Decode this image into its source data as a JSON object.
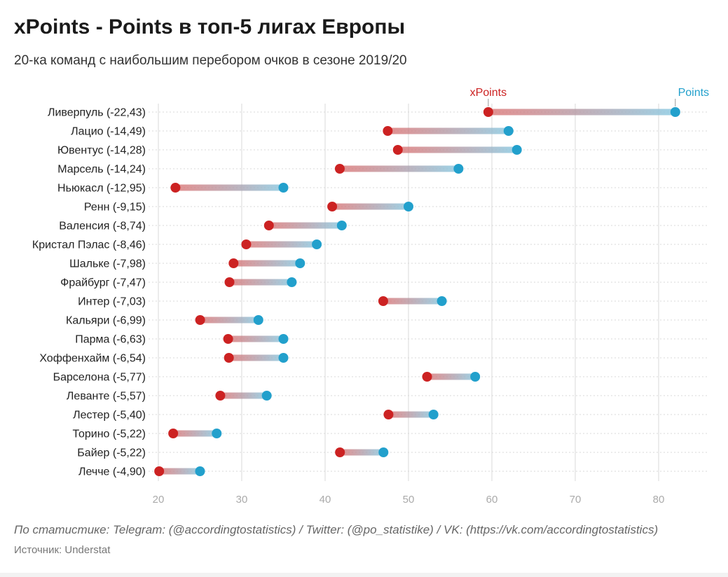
{
  "title": "xPoints - Points в топ-5 лигах Европы",
  "subtitle": "20-ка команд с наибольшим перебором очков в сезоне 2019/20",
  "footer": "По статистике: Telegram: (@accordingtostatistics) / Twitter: (@po_statistike) / VK: (https://vk.com/accordingtostatistics)",
  "source": "Источник: Understat",
  "colors": {
    "xpoints": "#cc2222",
    "points": "#22a0cc",
    "grid": "#d8d8d8",
    "tick": "#aaaaaa"
  },
  "chart_data": {
    "type": "dumbbell",
    "legend": {
      "xpoints_label": "xPoints",
      "points_label": "Points"
    },
    "xlim": [
      18,
      85
    ],
    "xticks": [
      20,
      30,
      40,
      50,
      60,
      70,
      80
    ],
    "teams": [
      {
        "label": "Ливерпуль (-22,43)",
        "xpoints": 59.57,
        "points": 82
      },
      {
        "label": "Лацио (-14,49)",
        "xpoints": 47.51,
        "points": 62
      },
      {
        "label": "Ювентус (-14,28)",
        "xpoints": 48.72,
        "points": 63
      },
      {
        "label": "Марсель (-14,24)",
        "xpoints": 41.76,
        "points": 56
      },
      {
        "label": "Ньюкасл (-12,95)",
        "xpoints": 22.05,
        "points": 35
      },
      {
        "label": "Ренн (-9,15)",
        "xpoints": 40.85,
        "points": 50
      },
      {
        "label": "Валенсия (-8,74)",
        "xpoints": 33.26,
        "points": 42
      },
      {
        "label": "Кристал Пэлас (-8,46)",
        "xpoints": 30.54,
        "points": 39
      },
      {
        "label": "Шальке (-7,98)",
        "xpoints": 29.02,
        "points": 37
      },
      {
        "label": "Фрайбург (-7,47)",
        "xpoints": 28.53,
        "points": 36
      },
      {
        "label": "Интер (-7,03)",
        "xpoints": 46.97,
        "points": 54
      },
      {
        "label": "Кальяри (-6,99)",
        "xpoints": 25.01,
        "points": 32
      },
      {
        "label": "Парма (-6,63)",
        "xpoints": 28.37,
        "points": 35
      },
      {
        "label": "Хоффенхайм (-6,54)",
        "xpoints": 28.46,
        "points": 35
      },
      {
        "label": "Барселона (-5,77)",
        "xpoints": 52.23,
        "points": 58
      },
      {
        "label": "Леванте (-5,57)",
        "xpoints": 27.43,
        "points": 33
      },
      {
        "label": "Лестер (-5,40)",
        "xpoints": 47.6,
        "points": 53
      },
      {
        "label": "Торино (-5,22)",
        "xpoints": 21.78,
        "points": 27
      },
      {
        "label": "Байер (-5,22)",
        "xpoints": 41.78,
        "points": 47
      },
      {
        "label": "Лечче (-4,90)",
        "xpoints": 20.1,
        "points": 25
      }
    ]
  }
}
